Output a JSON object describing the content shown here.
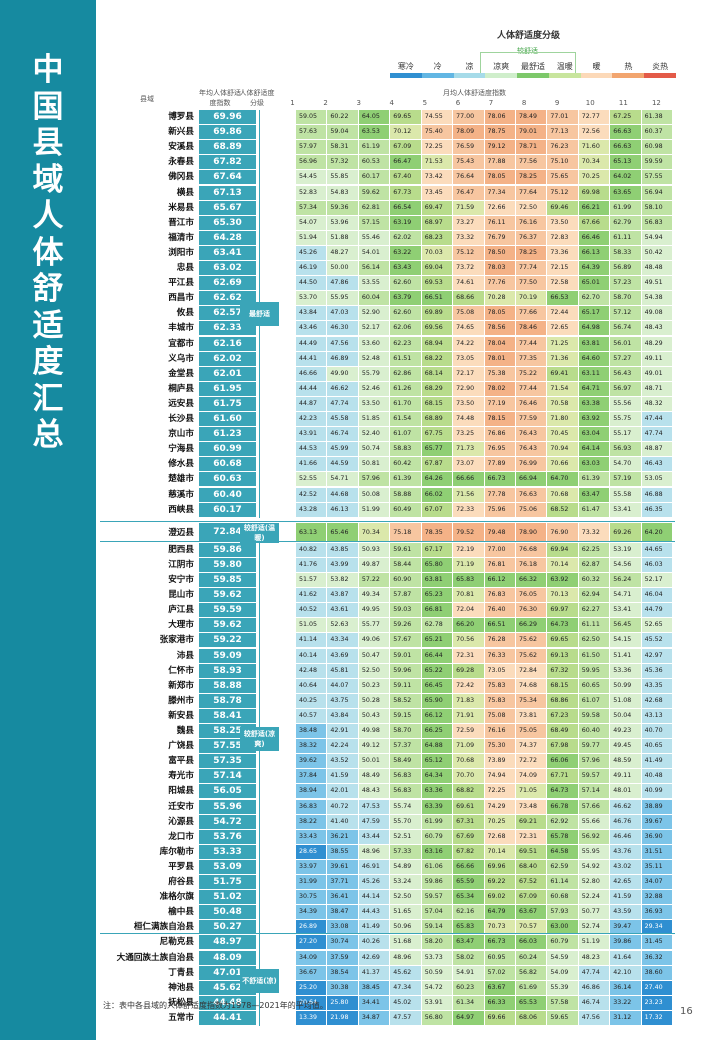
{
  "title": "中国县域人体舒适度汇总",
  "legend": {
    "title": "人体舒适度分级",
    "sub": "较舒适",
    "labels": [
      "寒冷",
      "冷",
      "凉",
      "凉爽",
      "最舒适",
      "温暖",
      "暖",
      "热",
      "炎热"
    ],
    "colors": [
      "#2f8fd1",
      "#62b6e3",
      "#a6dbe9",
      "#cfeecb",
      "#7dc86a",
      "#c8e59d",
      "#fcd9b8",
      "#f2a56f",
      "#e35a48"
    ]
  },
  "header": {
    "county": "县域",
    "avg": "年均人体舒适度指数",
    "grade": "人体舒适度分级",
    "month": "月均人体舒适度指数",
    "months": [
      "1",
      "2",
      "3",
      "4",
      "5",
      "6",
      "7",
      "8",
      "9",
      "10",
      "11",
      "12"
    ]
  },
  "grades": [
    {
      "label": "最舒适"
    },
    {
      "label": "较舒适(温暖)"
    },
    {
      "label": "较舒适(凉爽)"
    },
    {
      "label": "不舒适(凉)"
    }
  ],
  "rows": [
    [
      "博罗县",
      "69.96",
      [
        59.05,
        60.22,
        64.05,
        69.65,
        74.55,
        77.0,
        78.06,
        78.49,
        77.01,
        72.77,
        67.25,
        61.38
      ]
    ],
    [
      "新兴县",
      "69.86",
      [
        57.63,
        59.04,
        63.53,
        70.12,
        75.4,
        78.09,
        78.75,
        79.01,
        77.13,
        72.56,
        66.63,
        60.37
      ]
    ],
    [
      "安溪县",
      "68.89",
      [
        57.97,
        58.31,
        61.19,
        67.09,
        72.25,
        76.59,
        79.12,
        78.71,
        76.23,
        71.6,
        66.63,
        60.98
      ]
    ],
    [
      "永春县",
      "67.82",
      [
        56.96,
        57.32,
        60.53,
        66.47,
        71.53,
        75.43,
        77.88,
        77.56,
        75.1,
        70.34,
        65.13,
        59.59
      ]
    ],
    [
      "佛冈县",
      "67.64",
      [
        54.45,
        55.85,
        60.17,
        67.4,
        73.42,
        76.64,
        78.05,
        78.25,
        75.65,
        70.25,
        64.02,
        57.55
      ]
    ],
    [
      "横县",
      "67.13",
      [
        52.83,
        54.83,
        59.62,
        67.73,
        73.45,
        76.47,
        77.34,
        77.64,
        75.12,
        69.98,
        63.65,
        56.94
      ]
    ],
    [
      "米易县",
      "65.67",
      [
        57.34,
        59.36,
        62.81,
        66.54,
        69.47,
        71.59,
        72.66,
        72.5,
        69.46,
        66.21,
        61.99,
        58.1
      ]
    ],
    [
      "晋江市",
      "65.30",
      [
        54.07,
        53.96,
        57.15,
        63.19,
        68.97,
        73.27,
        76.11,
        76.16,
        73.5,
        67.66,
        62.79,
        56.83
      ]
    ],
    [
      "福清市",
      "64.28",
      [
        51.94,
        51.88,
        55.46,
        62.02,
        68.23,
        73.32,
        76.79,
        76.37,
        72.83,
        66.46,
        61.11,
        54.94
      ]
    ],
    [
      "浏阳市",
      "63.41",
      [
        45.26,
        48.27,
        54.01,
        63.22,
        70.03,
        75.12,
        78.5,
        78.25,
        73.36,
        66.13,
        58.33,
        50.42
      ]
    ],
    [
      "忠县",
      "63.02",
      [
        46.19,
        50.0,
        56.14,
        63.43,
        69.04,
        73.72,
        78.03,
        77.74,
        72.15,
        64.39,
        56.89,
        48.48
      ]
    ],
    [
      "平江县",
      "62.69",
      [
        44.5,
        47.86,
        53.55,
        62.6,
        69.53,
        74.61,
        77.76,
        77.5,
        72.58,
        65.01,
        57.23,
        49.51
      ]
    ],
    [
      "西昌市",
      "62.62",
      [
        53.7,
        55.95,
        60.04,
        63.79,
        66.51,
        68.66,
        70.28,
        70.19,
        66.53,
        62.7,
        58.7,
        54.38
      ]
    ],
    [
      "攸县",
      "62.57",
      [
        43.84,
        47.03,
        52.9,
        62.6,
        69.89,
        75.08,
        78.05,
        77.66,
        72.44,
        65.17,
        57.12,
        49.08
      ]
    ],
    [
      "丰城市",
      "62.33",
      [
        43.46,
        46.3,
        52.17,
        62.06,
        69.56,
        74.65,
        78.56,
        78.46,
        72.65,
        64.98,
        56.74,
        48.43
      ]
    ],
    [
      "宜都市",
      "62.16",
      [
        44.49,
        47.56,
        53.6,
        62.23,
        68.94,
        74.22,
        78.04,
        77.44,
        71.25,
        63.81,
        56.01,
        48.29
      ]
    ],
    [
      "义乌市",
      "62.02",
      [
        44.41,
        46.89,
        52.48,
        61.51,
        68.22,
        73.05,
        78.01,
        77.35,
        71.36,
        64.6,
        57.27,
        49.11
      ]
    ],
    [
      "金堂县",
      "62.01",
      [
        46.66,
        49.9,
        55.79,
        62.86,
        68.14,
        72.17,
        75.38,
        75.22,
        69.41,
        63.11,
        56.43,
        49.01
      ]
    ],
    [
      "桐庐县",
      "61.95",
      [
        44.44,
        46.62,
        52.46,
        61.26,
        68.29,
        72.9,
        78.02,
        77.44,
        71.54,
        64.71,
        56.97,
        48.71
      ]
    ],
    [
      "远安县",
      "61.75",
      [
        44.87,
        47.74,
        53.5,
        61.7,
        68.15,
        73.5,
        77.19,
        76.46,
        70.58,
        63.38,
        55.56,
        48.32
      ]
    ],
    [
      "长沙县",
      "61.60",
      [
        42.23,
        45.58,
        51.85,
        61.54,
        68.89,
        74.48,
        78.15,
        77.59,
        71.8,
        63.92,
        55.75,
        47.44
      ]
    ],
    [
      "京山市",
      "61.23",
      [
        43.91,
        46.74,
        52.4,
        61.07,
        67.75,
        73.25,
        76.86,
        76.43,
        70.45,
        63.04,
        55.17,
        47.74
      ]
    ],
    [
      "宁海县",
      "60.99",
      [
        44.53,
        45.99,
        50.74,
        58.83,
        65.77,
        71.73,
        76.95,
        76.43,
        70.94,
        64.14,
        56.93,
        48.87
      ]
    ],
    [
      "修水县",
      "60.68",
      [
        41.66,
        44.59,
        50.81,
        60.42,
        67.87,
        73.07,
        77.89,
        76.99,
        70.66,
        63.03,
        54.7,
        46.43
      ]
    ],
    [
      "楚雄市",
      "60.63",
      [
        52.55,
        54.71,
        57.96,
        61.39,
        64.26,
        66.66,
        66.73,
        66.94,
        64.7,
        61.39,
        57.19,
        53.05
      ]
    ],
    [
      "慈溪市",
      "60.40",
      [
        42.52,
        44.68,
        50.08,
        58.88,
        66.02,
        71.56,
        77.78,
        76.63,
        70.68,
        63.47,
        55.58,
        46.88
      ]
    ],
    [
      "西峡县",
      "60.17",
      [
        43.28,
        46.13,
        51.99,
        60.49,
        67.07,
        72.33,
        75.96,
        75.06,
        68.52,
        61.47,
        53.41,
        46.35
      ]
    ],
    [
      "澄迈县",
      "72.84",
      [
        63.13,
        65.46,
        70.34,
        75.18,
        78.35,
        79.52,
        79.48,
        78.9,
        76.9,
        73.32,
        69.26,
        64.2
      ]
    ],
    [
      "肥西县",
      "59.86",
      [
        40.82,
        43.85,
        50.93,
        59.61,
        67.17,
        72.19,
        77.0,
        76.68,
        69.94,
        62.25,
        53.19,
        44.65
      ]
    ],
    [
      "江阴市",
      "59.80",
      [
        41.76,
        43.99,
        49.87,
        58.44,
        65.8,
        71.19,
        76.81,
        76.18,
        70.14,
        62.87,
        54.56,
        46.03
      ]
    ],
    [
      "安宁市",
      "59.85",
      [
        51.57,
        53.82,
        57.22,
        60.9,
        63.81,
        65.83,
        66.12,
        66.32,
        63.92,
        60.32,
        56.24,
        52.17
      ]
    ],
    [
      "昆山市",
      "59.62",
      [
        41.62,
        43.87,
        49.34,
        57.87,
        65.23,
        70.81,
        76.83,
        76.05,
        70.13,
        62.94,
        54.71,
        46.04
      ]
    ],
    [
      "庐江县",
      "59.59",
      [
        40.52,
        43.61,
        49.95,
        59.03,
        66.81,
        72.04,
        76.4,
        76.3,
        69.97,
        62.27,
        53.41,
        44.79
      ]
    ],
    [
      "大理市",
      "59.62",
      [
        51.05,
        52.63,
        55.77,
        59.26,
        62.78,
        66.2,
        66.51,
        66.29,
        64.73,
        61.11,
        56.45,
        52.65
      ]
    ],
    [
      "张家港市",
      "59.22",
      [
        41.14,
        43.34,
        49.06,
        57.67,
        65.21,
        70.56,
        76.28,
        75.62,
        69.65,
        62.5,
        54.15,
        45.52
      ]
    ],
    [
      "沛县",
      "59.09",
      [
        40.14,
        43.69,
        50.47,
        59.01,
        66.44,
        72.31,
        76.33,
        75.62,
        69.13,
        61.5,
        51.41,
        42.97
      ]
    ],
    [
      "仁怀市",
      "58.93",
      [
        42.48,
        45.81,
        52.5,
        59.96,
        65.22,
        69.28,
        73.05,
        72.84,
        67.32,
        59.95,
        53.36,
        45.36
      ]
    ],
    [
      "新郑市",
      "58.88",
      [
        40.64,
        44.07,
        50.23,
        59.11,
        66.45,
        72.42,
        75.83,
        74.68,
        68.15,
        60.65,
        50.99,
        43.35
      ]
    ],
    [
      "滕州市",
      "58.78",
      [
        40.25,
        43.75,
        50.28,
        58.52,
        65.9,
        71.83,
        75.83,
        75.34,
        68.86,
        61.07,
        51.08,
        42.68
      ]
    ],
    [
      "新安县",
      "58.41",
      [
        40.57,
        43.84,
        50.43,
        59.15,
        66.12,
        71.91,
        75.08,
        73.81,
        67.23,
        59.58,
        50.04,
        43.13
      ]
    ],
    [
      "魏县",
      "58.25",
      [
        38.48,
        42.91,
        49.98,
        58.7,
        66.25,
        72.59,
        76.16,
        75.05,
        68.49,
        60.4,
        49.23,
        40.7
      ]
    ],
    [
      "广饶县",
      "57.55",
      [
        38.32,
        42.24,
        49.12,
        57.37,
        64.88,
        71.09,
        75.3,
        74.37,
        67.98,
        59.77,
        49.45,
        40.65
      ]
    ],
    [
      "富平县",
      "57.35",
      [
        39.62,
        43.52,
        50.01,
        58.49,
        65.12,
        70.68,
        73.89,
        72.72,
        66.06,
        57.96,
        48.59,
        41.49
      ]
    ],
    [
      "寿光市",
      "57.14",
      [
        37.84,
        41.59,
        48.49,
        56.83,
        64.34,
        70.7,
        74.94,
        74.09,
        67.71,
        59.57,
        49.11,
        40.48
      ]
    ],
    [
      "阳城县",
      "56.05",
      [
        38.94,
        42.01,
        48.43,
        56.83,
        63.36,
        68.82,
        72.25,
        71.05,
        64.73,
        57.14,
        48.01,
        40.99
      ]
    ],
    [
      "迁安市",
      "55.96",
      [
        36.83,
        40.72,
        47.53,
        55.74,
        63.39,
        69.61,
        74.29,
        73.48,
        66.78,
        57.66,
        46.62,
        38.89
      ]
    ],
    [
      "沁源县",
      "54.72",
      [
        38.22,
        41.4,
        47.59,
        55.7,
        61.99,
        67.31,
        70.25,
        69.21,
        62.92,
        55.66,
        46.76,
        39.67
      ]
    ],
    [
      "龙口市",
      "53.76",
      [
        33.43,
        36.21,
        43.44,
        52.51,
        60.79,
        67.69,
        72.68,
        72.31,
        65.78,
        56.92,
        46.46,
        36.9
      ]
    ],
    [
      "库尔勒市",
      "53.33",
      [
        28.65,
        38.55,
        48.96,
        57.33,
        63.16,
        67.82,
        70.14,
        69.51,
        64.58,
        55.95,
        43.76,
        31.51
      ]
    ],
    [
      "平罗县",
      "53.09",
      [
        33.97,
        39.61,
        46.91,
        54.89,
        61.06,
        66.66,
        69.96,
        68.4,
        62.59,
        54.92,
        43.02,
        35.11
      ]
    ],
    [
      "府谷县",
      "51.75",
      [
        31.99,
        37.71,
        45.26,
        53.24,
        59.86,
        65.59,
        69.22,
        67.52,
        61.14,
        52.8,
        42.65,
        34.07
      ]
    ],
    [
      "准格尔旗",
      "51.02",
      [
        30.75,
        36.41,
        44.14,
        52.5,
        59.57,
        65.34,
        69.02,
        67.09,
        60.68,
        52.24,
        41.59,
        32.88
      ]
    ],
    [
      "榆中县",
      "50.48",
      [
        34.39,
        38.47,
        44.43,
        51.65,
        57.04,
        62.16,
        64.79,
        63.67,
        57.93,
        50.77,
        43.59,
        36.93
      ]
    ],
    [
      "桓仁满族自治县",
      "50.27",
      [
        26.89,
        33.08,
        41.49,
        50.96,
        59.14,
        65.83,
        70.73,
        70.57,
        63.0,
        52.74,
        39.47,
        29.34
      ]
    ],
    [
      "尼勒克县",
      "48.97",
      [
        27.2,
        30.74,
        40.26,
        51.68,
        58.2,
        63.47,
        66.73,
        66.03,
        60.79,
        51.19,
        39.86,
        31.45
      ]
    ],
    [
      "大通回族土族自治县",
      "48.09",
      [
        34.09,
        37.59,
        42.69,
        48.96,
        53.73,
        58.02,
        60.95,
        60.24,
        54.59,
        48.23,
        41.64,
        36.32
      ]
    ],
    [
      "丁青县",
      "47.01",
      [
        36.67,
        38.54,
        41.37,
        45.62,
        50.59,
        54.91,
        57.02,
        56.82,
        54.09,
        47.74,
        42.1,
        38.6
      ]
    ],
    [
      "神池县",
      "45.62",
      [
        25.2,
        30.38,
        38.45,
        47.34,
        54.72,
        60.23,
        63.67,
        61.69,
        55.39,
        46.86,
        36.14,
        27.4
      ]
    ],
    [
      "抚松县",
      "44.48",
      [
        20.64,
        25.8,
        34.41,
        45.02,
        53.91,
        61.34,
        66.33,
        65.53,
        57.58,
        46.74,
        33.22,
        23.23
      ]
    ],
    [
      "五常市",
      "44.41",
      [
        13.39,
        21.98,
        34.87,
        47.57,
        56.8,
        64.97,
        69.66,
        68.06,
        59.65,
        47.56,
        31.12,
        17.32
      ]
    ]
  ],
  "note": "注：表中各县域的人体舒适度指数为1978—2021年的平均值。",
  "page": "16"
}
